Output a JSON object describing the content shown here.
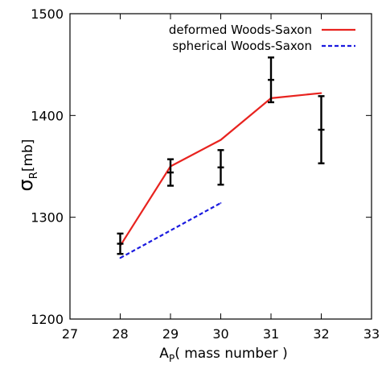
{
  "chart_data": {
    "type": "line",
    "title": "",
    "xlabel": {
      "main": "A",
      "sub": "P",
      "rest": "( mass number )"
    },
    "ylabel": {
      "main": "σ",
      "sub": "R",
      "rest": "[mb]"
    },
    "xlim": [
      27,
      33
    ],
    "ylim": [
      1200,
      1500
    ],
    "x_ticks": [
      27,
      28,
      29,
      30,
      31,
      32,
      33
    ],
    "y_ticks": [
      1200,
      1300,
      1400,
      1500
    ],
    "grid": false,
    "legend_position": "top-right",
    "series": [
      {
        "name": "deformed Woods-Saxon",
        "kind": "line",
        "style": "solid",
        "color": "#e8231f",
        "x": [
          28,
          29,
          30,
          31,
          32
        ],
        "y": [
          1272,
          1350,
          1376,
          1417,
          1422
        ]
      },
      {
        "name": "spherical Woods-Saxon",
        "kind": "line",
        "style": "dashed",
        "color": "#1a1adf",
        "x": [
          28,
          30
        ],
        "y": [
          1260,
          1314
        ]
      },
      {
        "name": "",
        "kind": "errorbar",
        "color": "#000000",
        "x": [
          28,
          29,
          30,
          31,
          32
        ],
        "y": [
          1274,
          1344,
          1349,
          1435,
          1386
        ],
        "err": [
          10,
          13,
          17,
          22,
          33
        ]
      }
    ]
  }
}
